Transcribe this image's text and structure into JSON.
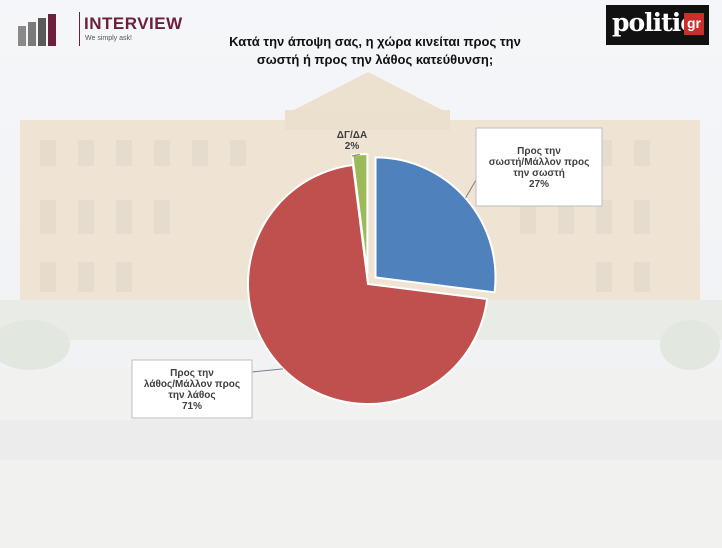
{
  "header": {
    "brand_name": "INTERVIEW",
    "brand_tagline": "We simply ask!",
    "publisher_logo": "politic",
    "publisher_logo_suffix": "gr"
  },
  "chart_data": {
    "type": "pie",
    "title_lines": [
      "Κατά την άποψη σας, η χώρα κινείται προς την",
      "σωστή ή προς την λάθος κατεύθυνση;"
    ],
    "slices": [
      {
        "label_lines": [
          "Προς την",
          "σωστή/Μάλλον προς",
          "την σωστή"
        ],
        "value": 27,
        "value_label": "27%",
        "color": "#4f81bd",
        "exploded": true
      },
      {
        "label_lines": [
          "Προς την",
          "λάθος/Μάλλον προς",
          "την λάθος"
        ],
        "value": 71,
        "value_label": "71%",
        "color": "#c0504d",
        "exploded": false
      },
      {
        "label_lines": [
          "ΔΓ/ΔΑ"
        ],
        "value": 2,
        "value_label": "2%",
        "color": "#9bbb59",
        "exploded": true
      }
    ],
    "legend": "none"
  }
}
